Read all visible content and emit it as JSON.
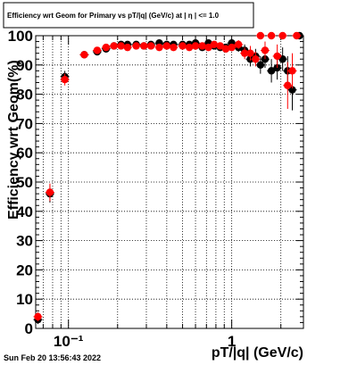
{
  "chart_data": {
    "type": "scatter",
    "title": "Efficiency wrt Geom for Primary vs pT/|q| (GeV/c) at | η | <= 1.0",
    "xlabel": "pT/|q| (GeV/c)",
    "ylabel": "Efficiency wrt Geom(%)",
    "x_scale": "log",
    "xlim": [
      0.063,
      2.75
    ],
    "ylim": [
      0,
      100
    ],
    "y_ticks": [
      "0",
      "10",
      "20",
      "30",
      "40",
      "50",
      "60",
      "70",
      "80",
      "90",
      "100"
    ],
    "x_tick_labels": [
      {
        "value": 0.1,
        "label": "10⁻¹"
      },
      {
        "value": 1,
        "label": "1"
      }
    ],
    "grid": true,
    "series": [
      {
        "color": "#000000",
        "points": [
          {
            "x": 0.065,
            "y": 3,
            "yerr": 1.5
          },
          {
            "x": 0.077,
            "y": 46,
            "yerr": 3
          },
          {
            "x": 0.095,
            "y": 86,
            "yerr": 2
          },
          {
            "x": 0.125,
            "y": 93.5,
            "yerr": 1
          },
          {
            "x": 0.15,
            "y": 94.5,
            "yerr": 1
          },
          {
            "x": 0.17,
            "y": 95.5,
            "yerr": 1
          },
          {
            "x": 0.19,
            "y": 96.5,
            "yerr": 0.8
          },
          {
            "x": 0.21,
            "y": 97,
            "yerr": 0.8
          },
          {
            "x": 0.23,
            "y": 97,
            "yerr": 0.8
          },
          {
            "x": 0.26,
            "y": 97,
            "yerr": 0.8
          },
          {
            "x": 0.29,
            "y": 96.5,
            "yerr": 0.8
          },
          {
            "x": 0.32,
            "y": 97,
            "yerr": 0.8
          },
          {
            "x": 0.36,
            "y": 97.5,
            "yerr": 0.8
          },
          {
            "x": 0.4,
            "y": 97,
            "yerr": 0.8
          },
          {
            "x": 0.44,
            "y": 97,
            "yerr": 0.8
          },
          {
            "x": 0.5,
            "y": 97,
            "yerr": 0.8
          },
          {
            "x": 0.55,
            "y": 97,
            "yerr": 1
          },
          {
            "x": 0.6,
            "y": 97.5,
            "yerr": 1
          },
          {
            "x": 0.66,
            "y": 96,
            "yerr": 1
          },
          {
            "x": 0.72,
            "y": 97.5,
            "yerr": 1
          },
          {
            "x": 0.78,
            "y": 96.5,
            "yerr": 1
          },
          {
            "x": 0.85,
            "y": 96,
            "yerr": 1.2
          },
          {
            "x": 0.92,
            "y": 96,
            "yerr": 1.2
          },
          {
            "x": 1.0,
            "y": 97.5,
            "yerr": 1.2
          },
          {
            "x": 1.1,
            "y": 96,
            "yerr": 1.5
          },
          {
            "x": 1.2,
            "y": 95,
            "yerr": 2
          },
          {
            "x": 1.3,
            "y": 92,
            "yerr": 2.5
          },
          {
            "x": 1.4,
            "y": 93,
            "yerr": 2.5
          },
          {
            "x": 1.5,
            "y": 90,
            "yerr": 3
          },
          {
            "x": 1.6,
            "y": 92,
            "yerr": 3
          },
          {
            "x": 1.75,
            "y": 88,
            "yerr": 4
          },
          {
            "x": 1.9,
            "y": 89,
            "yerr": 4
          },
          {
            "x": 2.05,
            "y": 92,
            "yerr": 4
          },
          {
            "x": 2.2,
            "y": 88,
            "yerr": 5
          },
          {
            "x": 2.35,
            "y": 81.5,
            "yerr": 7
          },
          {
            "x": 2.6,
            "y": 100,
            "yerr": 0
          }
        ]
      },
      {
        "color": "#ff0000",
        "points": [
          {
            "x": 0.065,
            "y": 4,
            "yerr": 1.5
          },
          {
            "x": 0.077,
            "y": 46.5,
            "yerr": 3
          },
          {
            "x": 0.095,
            "y": 85,
            "yerr": 2
          },
          {
            "x": 0.125,
            "y": 93.5,
            "yerr": 1
          },
          {
            "x": 0.15,
            "y": 95,
            "yerr": 1
          },
          {
            "x": 0.17,
            "y": 96,
            "yerr": 1
          },
          {
            "x": 0.19,
            "y": 96.5,
            "yerr": 0.8
          },
          {
            "x": 0.21,
            "y": 96.5,
            "yerr": 0.8
          },
          {
            "x": 0.23,
            "y": 96,
            "yerr": 0.8
          },
          {
            "x": 0.26,
            "y": 96.5,
            "yerr": 0.8
          },
          {
            "x": 0.29,
            "y": 96.5,
            "yerr": 0.8
          },
          {
            "x": 0.32,
            "y": 96.5,
            "yerr": 0.8
          },
          {
            "x": 0.36,
            "y": 96,
            "yerr": 0.8
          },
          {
            "x": 0.4,
            "y": 96.5,
            "yerr": 0.8
          },
          {
            "x": 0.44,
            "y": 96,
            "yerr": 0.8
          },
          {
            "x": 0.5,
            "y": 96.5,
            "yerr": 0.8
          },
          {
            "x": 0.55,
            "y": 96,
            "yerr": 1
          },
          {
            "x": 0.6,
            "y": 96.5,
            "yerr": 1
          },
          {
            "x": 0.66,
            "y": 96.5,
            "yerr": 1
          },
          {
            "x": 0.72,
            "y": 96,
            "yerr": 1
          },
          {
            "x": 0.78,
            "y": 97,
            "yerr": 1
          },
          {
            "x": 0.85,
            "y": 96.5,
            "yerr": 1.2
          },
          {
            "x": 0.92,
            "y": 95.5,
            "yerr": 1.2
          },
          {
            "x": 1.0,
            "y": 96,
            "yerr": 1.2
          },
          {
            "x": 1.1,
            "y": 97,
            "yerr": 1.5
          },
          {
            "x": 1.2,
            "y": 94,
            "yerr": 2
          },
          {
            "x": 1.3,
            "y": 94,
            "yerr": 2.5
          },
          {
            "x": 1.4,
            "y": 92,
            "yerr": 2.5
          },
          {
            "x": 1.5,
            "y": 100,
            "yerr": 0
          },
          {
            "x": 1.6,
            "y": 95,
            "yerr": 3
          },
          {
            "x": 1.75,
            "y": 100,
            "yerr": 0
          },
          {
            "x": 1.9,
            "y": 93,
            "yerr": 4
          },
          {
            "x": 2.05,
            "y": 100,
            "yerr": 0
          },
          {
            "x": 2.2,
            "y": 83,
            "yerr": 8
          },
          {
            "x": 2.35,
            "y": 88,
            "yerr": 6
          },
          {
            "x": 2.5,
            "y": 100,
            "yerr": 0
          }
        ]
      }
    ]
  },
  "footer": {
    "timestamp": "Sun Feb 20 13:56:43 2022"
  }
}
